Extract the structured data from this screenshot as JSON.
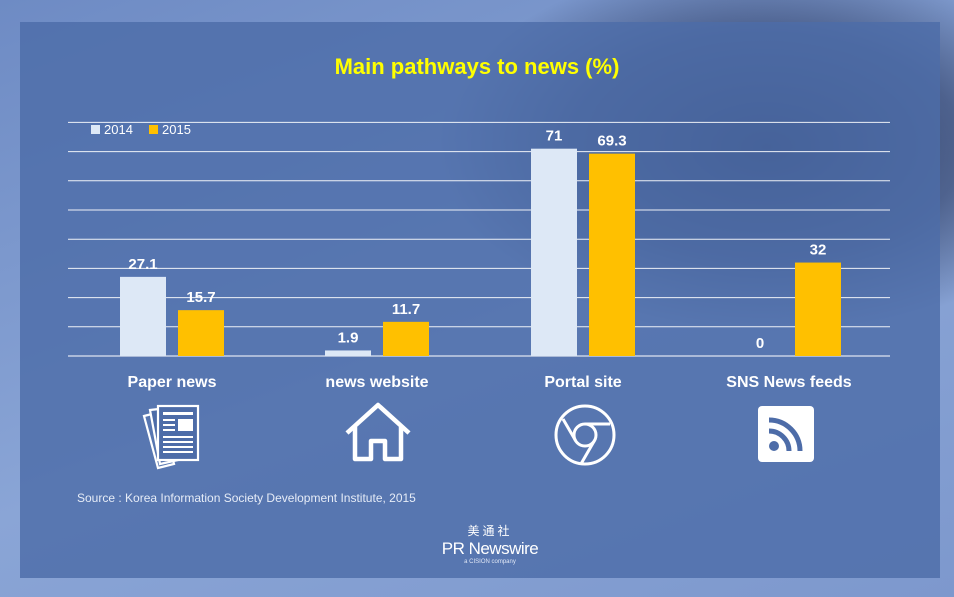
{
  "chart_data": {
    "type": "bar",
    "title": "Main pathways to news (%)",
    "categories": [
      "Paper news",
      "news website",
      "Portal site",
      "SNS News feeds"
    ],
    "series": [
      {
        "name": "2014",
        "values": [
          27.1,
          1.9,
          71,
          0
        ],
        "labels": [
          "27.1",
          "1.9",
          "71",
          "0"
        ],
        "color": "#dde8f6"
      },
      {
        "name": "2015",
        "values": [
          15.7,
          11.7,
          69.3,
          32
        ],
        "labels": [
          "15.7",
          "11.7",
          "69.3",
          "32"
        ],
        "color": "#ffc000"
      }
    ],
    "ylim": [
      0,
      80
    ],
    "grid": true,
    "legend": "top-left"
  },
  "icons": [
    "newspaper-icon",
    "home-icon",
    "chrome-icon",
    "rss-icon"
  ],
  "source": "Source : Korea Information Society Development Institute, 2015",
  "logo": {
    "chinese": "美通社",
    "name": "PR Newswire",
    "sub": "a CISION company"
  }
}
